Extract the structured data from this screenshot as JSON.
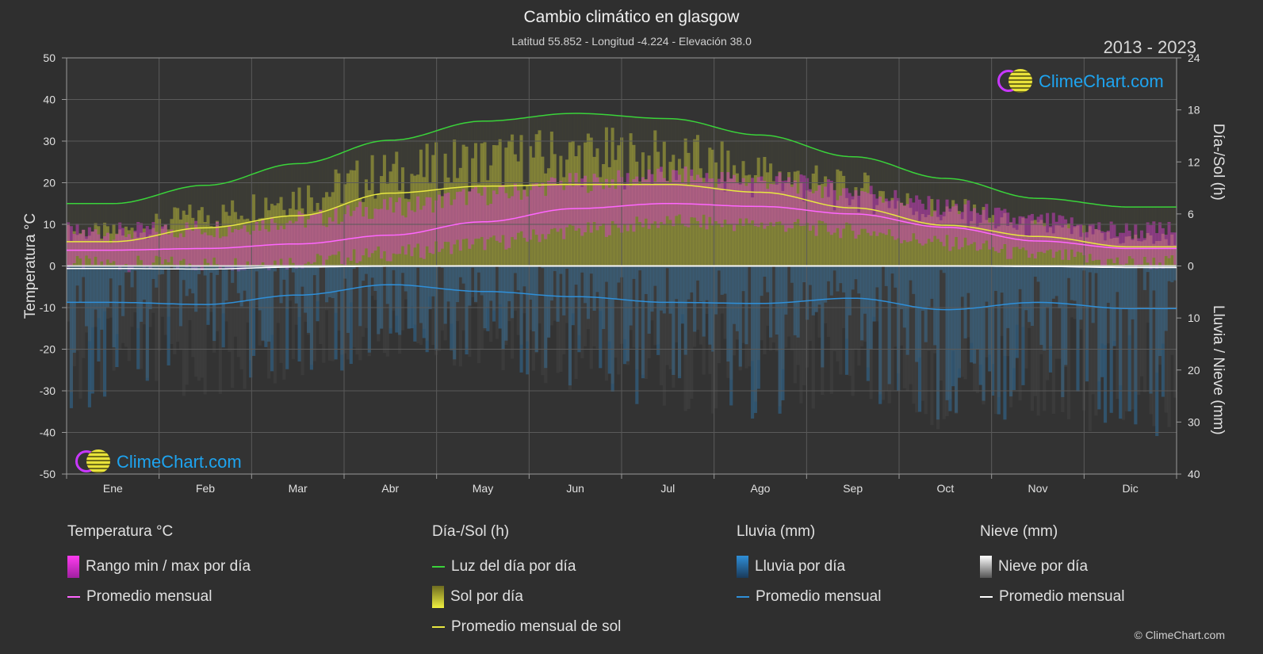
{
  "header": {
    "title": "Cambio climático en glasgow",
    "subtitle": "Latitud 55.852 - Longitud -4.224 - Elevación 38.0",
    "years": "2013 - 2023"
  },
  "logo": {
    "text": "ClimeChart.com"
  },
  "copyright": "© ClimeChart.com",
  "legend": {
    "temperature": {
      "title": "Temperatura °C",
      "items": [
        "Rango min / max por día",
        "Promedio mensual"
      ]
    },
    "daylight": {
      "title": "Día-/Sol (h)",
      "items": [
        "Luz del día por día",
        "Sol por día",
        "Promedio mensual de sol"
      ]
    },
    "rain": {
      "title": "Lluvia (mm)",
      "items": [
        "Lluvia por día",
        "Promedio mensual"
      ]
    },
    "snow": {
      "title": "Nieve (mm)",
      "items": [
        "Nieve por día",
        "Promedio mensual"
      ]
    }
  },
  "colors": {
    "daylight": "#3ad33a",
    "sunshine": "#e8e840",
    "temp_avg": "#ff66ff",
    "temp_range": "#d23cc8",
    "rain": "#2f8fd8",
    "snow": "#ffffff",
    "background": "#2f2f2f"
  },
  "chart_data": {
    "type": "line",
    "months": [
      "Ene",
      "Feb",
      "Mar",
      "Abr",
      "May",
      "Jun",
      "Jul",
      "Ago",
      "Sep",
      "Oct",
      "Nov",
      "Dic"
    ],
    "y_left": {
      "label": "Temperatura °C",
      "range": [
        -50,
        50
      ],
      "ticks": [
        50,
        40,
        30,
        20,
        10,
        0,
        -10,
        -20,
        -30,
        -40,
        -50
      ]
    },
    "y_right_top": {
      "label": "Día-/Sol (h)",
      "range": [
        0,
        24
      ],
      "ticks": [
        24,
        18,
        12,
        6,
        0
      ]
    },
    "y_right_bottom": {
      "label": "Lluvia / Nieve (mm)",
      "range": [
        0,
        40
      ],
      "ticks": [
        0,
        10,
        20,
        30,
        40
      ]
    },
    "series": [
      {
        "name": "Luz del día por día",
        "axis": "hours",
        "values": [
          7.2,
          9.3,
          11.8,
          14.5,
          16.7,
          17.6,
          17.0,
          15.1,
          12.6,
          10.1,
          7.8,
          6.8
        ]
      },
      {
        "name": "Promedio mensual de sol",
        "axis": "hours",
        "values": [
          2.8,
          4.4,
          5.8,
          8.4,
          9.2,
          9.4,
          9.4,
          8.5,
          6.7,
          4.7,
          3.4,
          2.2
        ]
      },
      {
        "name": "Promedio mensual",
        "axis": "temperature",
        "values": [
          3.8,
          4.2,
          5.3,
          7.4,
          10.6,
          13.8,
          15.0,
          14.3,
          12.5,
          9.3,
          6.0,
          4.2
        ]
      },
      {
        "name": "Promedio mensual",
        "axis": "rain_mm",
        "values": [
          7.0,
          7.4,
          5.6,
          3.6,
          4.9,
          5.9,
          7.0,
          7.2,
          6.2,
          8.4,
          7.0,
          8.2
        ]
      },
      {
        "name": "Promedio mensual",
        "axis": "snow_mm",
        "values": [
          0.5,
          0.6,
          0.2,
          0.05,
          0,
          0,
          0,
          0,
          0,
          0,
          0.1,
          0.3
        ]
      }
    ],
    "temp_daily_range": {
      "min": [
        0.5,
        0.5,
        1.0,
        3.0,
        5.5,
        8.5,
        10.5,
        10.0,
        8.5,
        5.5,
        2.5,
        0.8
      ],
      "max": [
        8.0,
        9.0,
        11.0,
        14.0,
        17.0,
        20.0,
        21.5,
        20.5,
        18.0,
        14.0,
        10.5,
        8.5
      ]
    },
    "sunshine_daily_max": [
      5.0,
      7.5,
      10.5,
      13.5,
      15.5,
      16.3,
      15.8,
      13.5,
      11.0,
      8.0,
      5.5,
      4.0
    ],
    "rain_daily_max": [
      28,
      26,
      22,
      18,
      20,
      24,
      28,
      30,
      26,
      32,
      30,
      34
    ]
  }
}
